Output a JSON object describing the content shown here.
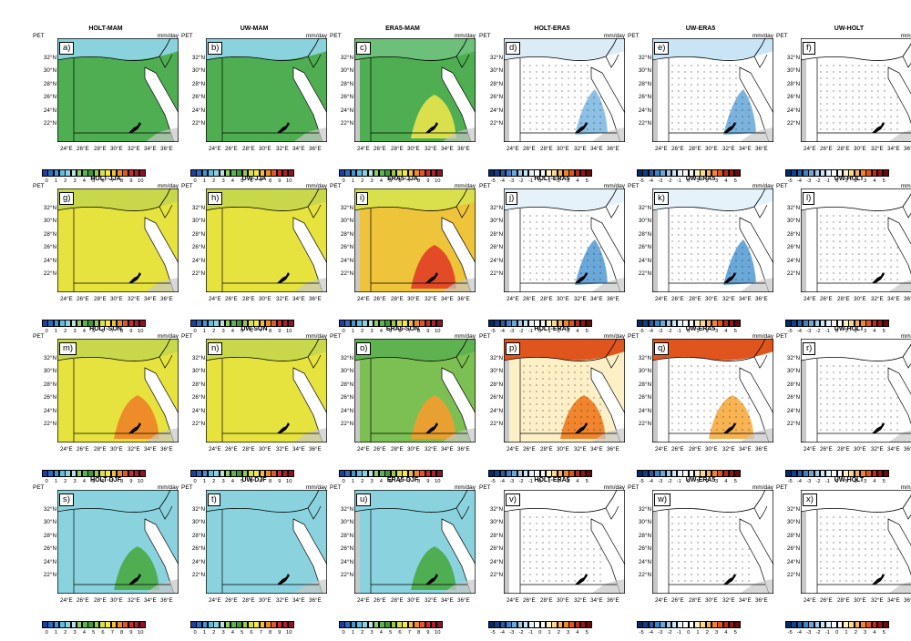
{
  "figure": {
    "variable_label": "PET",
    "units": "mm/day",
    "lat_ticks": [
      "32°N",
      "30°N",
      "28°N",
      "26°N",
      "24°N",
      "22°N"
    ],
    "lon_ticks": [
      "24°E",
      "26°E",
      "28°E",
      "30°E",
      "32°E",
      "34°E",
      "36°E"
    ],
    "colorbars": {
      "absolute": {
        "ticks": [
          "0",
          "1",
          "2",
          "3",
          "4",
          "5",
          "6",
          "7",
          "8",
          "9",
          "10"
        ],
        "colors": [
          "#1e3fa0",
          "#2d6cc0",
          "#3e9ad6",
          "#5ebde0",
          "#8ad3de",
          "#b6e2e0",
          "#8ad06e",
          "#5eb350",
          "#3f9a3c",
          "#9cc844",
          "#d9e04c",
          "#f5e840",
          "#f3c032",
          "#ee8c2a",
          "#e4552a",
          "#d42a2a",
          "#b01e2a",
          "#8c1426"
        ]
      },
      "difference": {
        "ticks": [
          "-5",
          "-4",
          "-3",
          "-2",
          "-1",
          "0",
          "1",
          "2",
          "3",
          "4",
          "5"
        ],
        "colors": [
          "#062a66",
          "#123f8c",
          "#2260b0",
          "#3e84c8",
          "#6aa8da",
          "#9ccbeb",
          "#c8e4f5",
          "#e6f2fa",
          "#ffffff",
          "#ffffff",
          "#fdf0c6",
          "#fbd98a",
          "#f8b452",
          "#f0852e",
          "#e0551e",
          "#c42a16",
          "#9c1410",
          "#6c0808"
        ]
      }
    },
    "panels": [
      {
        "id": "a",
        "label": "a)",
        "title": "HOLT-MAM",
        "scale": "absolute",
        "colors": {
          "base": "#4fae52",
          "north": "#8ad3de",
          "hot": null,
          "cool": null
        },
        "dots": false
      },
      {
        "id": "b",
        "label": "b)",
        "title": "UW-MAM",
        "scale": "absolute",
        "colors": {
          "base": "#4fae52",
          "north": "#8ad3de",
          "hot": null,
          "cool": null
        },
        "dots": false
      },
      {
        "id": "c",
        "label": "c)",
        "title": "ERA5-MAM",
        "scale": "absolute",
        "colors": {
          "base": "#4fae52",
          "north": "#6cc07a",
          "hot": "#d9e04c",
          "cool": null
        },
        "dots": false
      },
      {
        "id": "d",
        "label": "d)",
        "title": "HOLT-ERA5",
        "scale": "difference",
        "colors": {
          "base": "#ffffff",
          "north": "#dcecf7",
          "hot": null,
          "cool": "#8cc0e4"
        },
        "dots": true
      },
      {
        "id": "e",
        "label": "e)",
        "title": "UW-ERA5",
        "scale": "difference",
        "colors": {
          "base": "#ffffff",
          "north": "#c8e4f5",
          "hot": null,
          "cool": "#7ab4de"
        },
        "dots": true
      },
      {
        "id": "f",
        "label": "f)",
        "title": "UW-HOLT",
        "scale": "difference",
        "colors": {
          "base": "#ffffff",
          "north": "#ffffff",
          "hot": null,
          "cool": null
        },
        "dots": true
      },
      {
        "id": "g",
        "label": "g)",
        "title": "HOLT-JJA",
        "scale": "absolute",
        "colors": {
          "base": "#e6e23e",
          "north": "#c8d84a",
          "hot": null,
          "cool": null
        },
        "dots": false
      },
      {
        "id": "h",
        "label": "h)",
        "title": "UW-JJA",
        "scale": "absolute",
        "colors": {
          "base": "#e6e23e",
          "north": "#c8d84a",
          "hot": null,
          "cool": null
        },
        "dots": false
      },
      {
        "id": "i",
        "label": "i)",
        "title": "ERA5-JJA",
        "scale": "absolute",
        "colors": {
          "base": "#eec43a",
          "north": "#d9e04c",
          "hot": "#e24a28",
          "cool": null
        },
        "dots": false
      },
      {
        "id": "j",
        "label": "j)",
        "title": "HOLT-ERA5",
        "scale": "difference",
        "colors": {
          "base": "#ffffff",
          "north": "#e6f2fa",
          "hot": null,
          "cool": "#6aa8da"
        },
        "dots": true
      },
      {
        "id": "k",
        "label": "k)",
        "title": "UW-ERA5",
        "scale": "difference",
        "colors": {
          "base": "#ffffff",
          "north": "#e6f2fa",
          "hot": null,
          "cool": "#6aa8da"
        },
        "dots": true
      },
      {
        "id": "l",
        "label": "l)",
        "title": "UW-HOLT",
        "scale": "difference",
        "colors": {
          "base": "#ffffff",
          "north": "#ffffff",
          "hot": null,
          "cool": null
        },
        "dots": true
      },
      {
        "id": "m",
        "label": "m)",
        "title": "HOLT-SON",
        "scale": "absolute",
        "colors": {
          "base": "#e6e23e",
          "north": "#c8d84a",
          "hot": "#ee8c2a",
          "cool": null
        },
        "dots": false
      },
      {
        "id": "n",
        "label": "n)",
        "title": "UW-SON",
        "scale": "absolute",
        "colors": {
          "base": "#e6e23e",
          "north": "#c8d84a",
          "hot": null,
          "cool": null
        },
        "dots": false
      },
      {
        "id": "o",
        "label": "o)",
        "title": "ERA5-SON",
        "scale": "absolute",
        "colors": {
          "base": "#7cbf52",
          "north": "#5eb350",
          "hot": "#e8a030",
          "cool": null
        },
        "dots": false
      },
      {
        "id": "p",
        "label": "p)",
        "title": "HOLT-ERA5",
        "scale": "difference",
        "colors": {
          "base": "#fdf0c6",
          "north": "#e0551e",
          "hot": "#f0852e",
          "cool": null
        },
        "dots": true
      },
      {
        "id": "q",
        "label": "q)",
        "title": "UW-ERA5",
        "scale": "difference",
        "colors": {
          "base": "#ffffff",
          "north": "#e0551e",
          "hot": "#f8b452",
          "cool": null
        },
        "dots": true
      },
      {
        "id": "r",
        "label": "r)",
        "title": "UW-HOLT",
        "scale": "difference",
        "colors": {
          "base": "#ffffff",
          "north": "#ffffff",
          "hot": null,
          "cool": null
        },
        "dots": true
      },
      {
        "id": "s",
        "label": "s)",
        "title": "HOLT-DJF",
        "scale": "absolute",
        "colors": {
          "base": "#8ad3de",
          "north": "#8ad3de",
          "hot": "#4fae52",
          "cool": null
        },
        "dots": false
      },
      {
        "id": "t",
        "label": "t)",
        "title": "UW-DJF",
        "scale": "absolute",
        "colors": {
          "base": "#8ad3de",
          "north": "#8ad3de",
          "hot": null,
          "cool": null
        },
        "dots": false
      },
      {
        "id": "u",
        "label": "u)",
        "title": "ERA5-DJF",
        "scale": "absolute",
        "colors": {
          "base": "#8ad3de",
          "north": "#8ad3de",
          "hot": "#4fae52",
          "cool": null
        },
        "dots": false
      },
      {
        "id": "v",
        "label": "v)",
        "title": "HOLT-ERA5",
        "scale": "difference",
        "colors": {
          "base": "#ffffff",
          "north": "#ffffff",
          "hot": null,
          "cool": null
        },
        "dots": true
      },
      {
        "id": "w",
        "label": "w)",
        "title": "UW-ERA5",
        "scale": "difference",
        "colors": {
          "base": "#ffffff",
          "north": "#ffffff",
          "hot": null,
          "cool": null
        },
        "dots": true
      },
      {
        "id": "x",
        "label": "x)",
        "title": "UW-HOLT",
        "scale": "difference",
        "colors": {
          "base": "#ffffff",
          "north": "#ffffff",
          "hot": null,
          "cool": null
        },
        "dots": true
      }
    ]
  }
}
